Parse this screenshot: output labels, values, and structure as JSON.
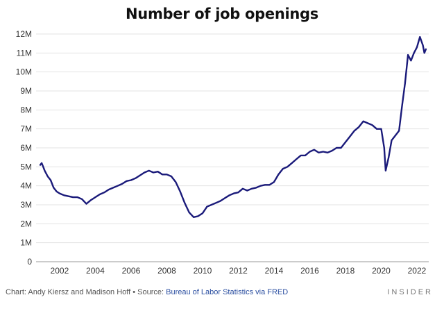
{
  "chart_data": {
    "type": "line",
    "title": "Number of job openings",
    "xlabel": "",
    "ylabel": "",
    "y_ticks": [
      "0",
      "1M",
      "2M",
      "3M",
      "4M",
      "5M",
      "6M",
      "7M",
      "8M",
      "9M",
      "10M",
      "11M",
      "12M"
    ],
    "x_ticks": [
      "2002",
      "2004",
      "2006",
      "2008",
      "2010",
      "2012",
      "2014",
      "2016",
      "2018",
      "2020",
      "2022"
    ],
    "ylim": [
      0,
      12
    ],
    "xlim": [
      "2000-12",
      "2022-08"
    ],
    "grid": true,
    "line_color": "#1a1a7a",
    "series": [
      {
        "values": [
          [
            "2000-12",
            5.1
          ],
          [
            "2001-01",
            5.2
          ],
          [
            "2001-02",
            5.0
          ],
          [
            "2001-03",
            4.8
          ],
          [
            "2001-05",
            4.5
          ],
          [
            "2001-07",
            4.3
          ],
          [
            "2001-09",
            3.9
          ],
          [
            "2001-11",
            3.7
          ],
          [
            "2002-01",
            3.6
          ],
          [
            "2002-04",
            3.5
          ],
          [
            "2002-07",
            3.45
          ],
          [
            "2002-10",
            3.4
          ],
          [
            "2003-01",
            3.4
          ],
          [
            "2003-04",
            3.3
          ],
          [
            "2003-07",
            3.05
          ],
          [
            "2003-10",
            3.25
          ],
          [
            "2004-01",
            3.4
          ],
          [
            "2004-04",
            3.55
          ],
          [
            "2004-07",
            3.65
          ],
          [
            "2004-10",
            3.8
          ],
          [
            "2005-01",
            3.9
          ],
          [
            "2005-04",
            4.0
          ],
          [
            "2005-07",
            4.1
          ],
          [
            "2005-10",
            4.25
          ],
          [
            "2006-01",
            4.3
          ],
          [
            "2006-04",
            4.4
          ],
          [
            "2006-07",
            4.55
          ],
          [
            "2006-10",
            4.7
          ],
          [
            "2007-01",
            4.8
          ],
          [
            "2007-04",
            4.7
          ],
          [
            "2007-07",
            4.75
          ],
          [
            "2007-10",
            4.6
          ],
          [
            "2008-01",
            4.6
          ],
          [
            "2008-04",
            4.5
          ],
          [
            "2008-07",
            4.2
          ],
          [
            "2008-10",
            3.7
          ],
          [
            "2009-01",
            3.1
          ],
          [
            "2009-04",
            2.6
          ],
          [
            "2009-07",
            2.35
          ],
          [
            "2009-10",
            2.4
          ],
          [
            "2010-01",
            2.55
          ],
          [
            "2010-04",
            2.9
          ],
          [
            "2010-07",
            3.0
          ],
          [
            "2010-10",
            3.1
          ],
          [
            "2011-01",
            3.2
          ],
          [
            "2011-04",
            3.35
          ],
          [
            "2011-07",
            3.5
          ],
          [
            "2011-10",
            3.6
          ],
          [
            "2012-01",
            3.65
          ],
          [
            "2012-04",
            3.85
          ],
          [
            "2012-07",
            3.75
          ],
          [
            "2012-10",
            3.85
          ],
          [
            "2013-01",
            3.9
          ],
          [
            "2013-04",
            4.0
          ],
          [
            "2013-07",
            4.05
          ],
          [
            "2013-10",
            4.05
          ],
          [
            "2014-01",
            4.2
          ],
          [
            "2014-04",
            4.6
          ],
          [
            "2014-07",
            4.9
          ],
          [
            "2014-10",
            5.0
          ],
          [
            "2015-01",
            5.2
          ],
          [
            "2015-04",
            5.4
          ],
          [
            "2015-07",
            5.6
          ],
          [
            "2015-10",
            5.6
          ],
          [
            "2016-01",
            5.8
          ],
          [
            "2016-04",
            5.9
          ],
          [
            "2016-07",
            5.75
          ],
          [
            "2016-10",
            5.8
          ],
          [
            "2017-01",
            5.75
          ],
          [
            "2017-04",
            5.85
          ],
          [
            "2017-07",
            6.0
          ],
          [
            "2017-10",
            6.0
          ],
          [
            "2018-01",
            6.3
          ],
          [
            "2018-04",
            6.6
          ],
          [
            "2018-07",
            6.9
          ],
          [
            "2018-10",
            7.1
          ],
          [
            "2019-01",
            7.4
          ],
          [
            "2019-04",
            7.3
          ],
          [
            "2019-07",
            7.2
          ],
          [
            "2019-10",
            7.0
          ],
          [
            "2020-01",
            7.0
          ],
          [
            "2020-03",
            6.0
          ],
          [
            "2020-04",
            4.8
          ],
          [
            "2020-06",
            5.5
          ],
          [
            "2020-08",
            6.4
          ],
          [
            "2020-10",
            6.6
          ],
          [
            "2021-01",
            6.9
          ],
          [
            "2021-03",
            8.2
          ],
          [
            "2021-05",
            9.4
          ],
          [
            "2021-07",
            10.9
          ],
          [
            "2021-09",
            10.6
          ],
          [
            "2021-11",
            11.0
          ],
          [
            "2022-01",
            11.3
          ],
          [
            "2022-03",
            11.85
          ],
          [
            "2022-05",
            11.4
          ],
          [
            "2022-06",
            11.0
          ],
          [
            "2022-07",
            11.2
          ]
        ]
      }
    ]
  },
  "footer": {
    "chart_label": "Chart:",
    "authors": "Andy Kiersz and Madison Hoff",
    "separator": " • ",
    "source_label": "Source:",
    "source": "Bureau of Labor Statistics via FRED",
    "brand": "INSIDER"
  }
}
